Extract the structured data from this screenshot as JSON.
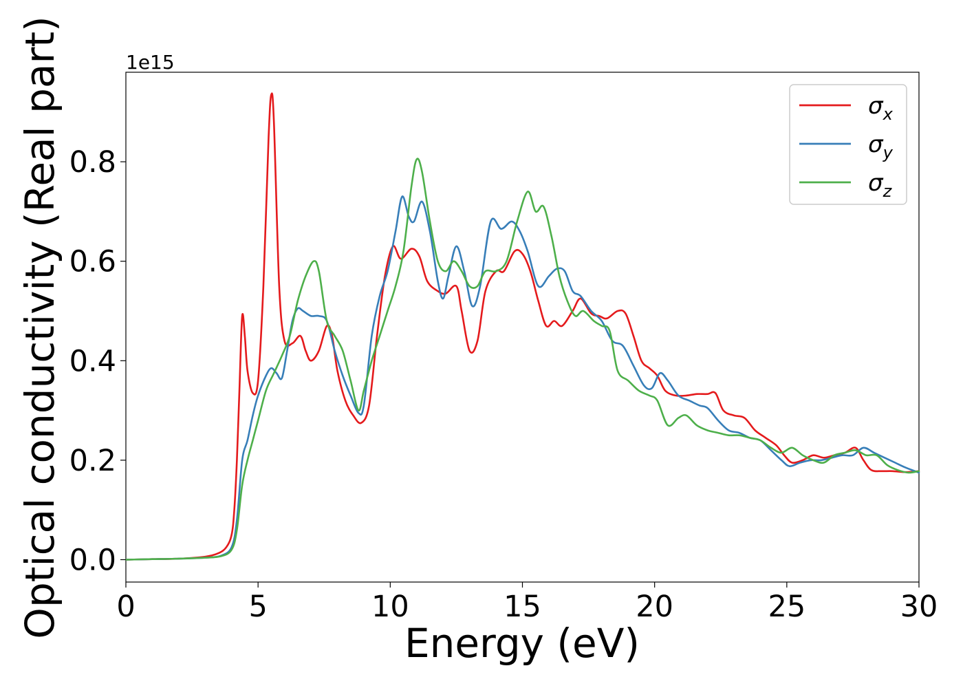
{
  "chart_data": {
    "type": "line",
    "xlabel": "Energy (eV)",
    "ylabel": "Optical conductivity (Real part)",
    "y_offset_label": "1e15",
    "xlim": [
      0,
      30
    ],
    "ylim": [
      -0.045,
      0.98
    ],
    "x_ticks": [
      0,
      5,
      10,
      15,
      20,
      25,
      30
    ],
    "x_tick_labels": [
      "0",
      "5",
      "10",
      "15",
      "20",
      "25",
      "30"
    ],
    "y_ticks": [
      0.0,
      0.2,
      0.4,
      0.6,
      0.8
    ],
    "y_tick_labels": [
      "0.0",
      "0.2",
      "0.4",
      "0.6",
      "0.8"
    ],
    "grid": false,
    "legend_position": "top-right",
    "series": [
      {
        "name": "σx",
        "symbol": "σ",
        "subscript": "x",
        "color": "#e41a1c",
        "points": [
          [
            0,
            0
          ],
          [
            1,
            0.001
          ],
          [
            2,
            0.002
          ],
          [
            3,
            0.006
          ],
          [
            3.5,
            0.013
          ],
          [
            3.8,
            0.025
          ],
          [
            4.0,
            0.05
          ],
          [
            4.1,
            0.1
          ],
          [
            4.2,
            0.2
          ],
          [
            4.3,
            0.35
          ],
          [
            4.4,
            0.49
          ],
          [
            4.5,
            0.45
          ],
          [
            4.6,
            0.38
          ],
          [
            4.8,
            0.335
          ],
          [
            5.0,
            0.36
          ],
          [
            5.2,
            0.55
          ],
          [
            5.4,
            0.85
          ],
          [
            5.5,
            0.935
          ],
          [
            5.6,
            0.88
          ],
          [
            5.8,
            0.55
          ],
          [
            6.0,
            0.44
          ],
          [
            6.3,
            0.435
          ],
          [
            6.6,
            0.45
          ],
          [
            6.8,
            0.42
          ],
          [
            7.0,
            0.4
          ],
          [
            7.3,
            0.42
          ],
          [
            7.6,
            0.47
          ],
          [
            7.8,
            0.45
          ],
          [
            8.0,
            0.38
          ],
          [
            8.3,
            0.32
          ],
          [
            8.6,
            0.29
          ],
          [
            8.9,
            0.275
          ],
          [
            9.2,
            0.31
          ],
          [
            9.5,
            0.45
          ],
          [
            9.8,
            0.57
          ],
          [
            10.1,
            0.63
          ],
          [
            10.4,
            0.605
          ],
          [
            10.8,
            0.625
          ],
          [
            11.1,
            0.61
          ],
          [
            11.4,
            0.56
          ],
          [
            11.8,
            0.54
          ],
          [
            12.1,
            0.535
          ],
          [
            12.5,
            0.55
          ],
          [
            12.7,
            0.5
          ],
          [
            13.0,
            0.42
          ],
          [
            13.3,
            0.44
          ],
          [
            13.6,
            0.54
          ],
          [
            14.0,
            0.58
          ],
          [
            14.3,
            0.58
          ],
          [
            14.7,
            0.62
          ],
          [
            15.0,
            0.615
          ],
          [
            15.3,
            0.58
          ],
          [
            15.6,
            0.52
          ],
          [
            15.9,
            0.47
          ],
          [
            16.2,
            0.48
          ],
          [
            16.5,
            0.47
          ],
          [
            16.9,
            0.5
          ],
          [
            17.2,
            0.525
          ],
          [
            17.6,
            0.495
          ],
          [
            17.9,
            0.49
          ],
          [
            18.2,
            0.485
          ],
          [
            18.6,
            0.5
          ],
          [
            18.9,
            0.495
          ],
          [
            19.2,
            0.45
          ],
          [
            19.5,
            0.4
          ],
          [
            19.8,
            0.385
          ],
          [
            20.1,
            0.37
          ],
          [
            20.4,
            0.34
          ],
          [
            20.8,
            0.33
          ],
          [
            21.2,
            0.33
          ],
          [
            21.6,
            0.333
          ],
          [
            22.0,
            0.333
          ],
          [
            22.3,
            0.335
          ],
          [
            22.6,
            0.3
          ],
          [
            23.0,
            0.29
          ],
          [
            23.4,
            0.285
          ],
          [
            23.8,
            0.26
          ],
          [
            24.2,
            0.245
          ],
          [
            24.6,
            0.23
          ],
          [
            24.9,
            0.21
          ],
          [
            25.2,
            0.195
          ],
          [
            25.6,
            0.2
          ],
          [
            26.0,
            0.21
          ],
          [
            26.4,
            0.205
          ],
          [
            26.8,
            0.21
          ],
          [
            27.2,
            0.215
          ],
          [
            27.6,
            0.225
          ],
          [
            27.9,
            0.2
          ],
          [
            28.2,
            0.18
          ],
          [
            28.6,
            0.178
          ],
          [
            29.0,
            0.178
          ],
          [
            29.5,
            0.176
          ],
          [
            30.0,
            0.178
          ]
        ]
      },
      {
        "name": "σy",
        "symbol": "σ",
        "subscript": "y",
        "color": "#377eb8",
        "points": [
          [
            0,
            0
          ],
          [
            1,
            0.001
          ],
          [
            2,
            0.002
          ],
          [
            3,
            0.004
          ],
          [
            3.6,
            0.008
          ],
          [
            4.0,
            0.025
          ],
          [
            4.2,
            0.08
          ],
          [
            4.4,
            0.2
          ],
          [
            4.6,
            0.24
          ],
          [
            4.8,
            0.29
          ],
          [
            5.0,
            0.33
          ],
          [
            5.3,
            0.37
          ],
          [
            5.5,
            0.385
          ],
          [
            5.7,
            0.375
          ],
          [
            5.9,
            0.365
          ],
          [
            6.1,
            0.42
          ],
          [
            6.3,
            0.48
          ],
          [
            6.5,
            0.505
          ],
          [
            6.7,
            0.5
          ],
          [
            7.0,
            0.49
          ],
          [
            7.3,
            0.49
          ],
          [
            7.6,
            0.48
          ],
          [
            7.9,
            0.42
          ],
          [
            8.2,
            0.37
          ],
          [
            8.5,
            0.33
          ],
          [
            8.8,
            0.295
          ],
          [
            9.0,
            0.31
          ],
          [
            9.3,
            0.45
          ],
          [
            9.6,
            0.53
          ],
          [
            9.9,
            0.58
          ],
          [
            10.2,
            0.66
          ],
          [
            10.45,
            0.73
          ],
          [
            10.7,
            0.69
          ],
          [
            10.9,
            0.68
          ],
          [
            11.2,
            0.72
          ],
          [
            11.5,
            0.66
          ],
          [
            11.8,
            0.56
          ],
          [
            12.0,
            0.525
          ],
          [
            12.2,
            0.57
          ],
          [
            12.5,
            0.63
          ],
          [
            12.8,
            0.58
          ],
          [
            13.1,
            0.51
          ],
          [
            13.4,
            0.55
          ],
          [
            13.8,
            0.68
          ],
          [
            14.2,
            0.665
          ],
          [
            14.6,
            0.68
          ],
          [
            14.9,
            0.66
          ],
          [
            15.2,
            0.62
          ],
          [
            15.6,
            0.55
          ],
          [
            16.0,
            0.57
          ],
          [
            16.3,
            0.585
          ],
          [
            16.6,
            0.58
          ],
          [
            16.9,
            0.54
          ],
          [
            17.2,
            0.53
          ],
          [
            17.6,
            0.5
          ],
          [
            18.0,
            0.48
          ],
          [
            18.4,
            0.44
          ],
          [
            18.8,
            0.43
          ],
          [
            19.2,
            0.39
          ],
          [
            19.6,
            0.35
          ],
          [
            19.9,
            0.345
          ],
          [
            20.2,
            0.375
          ],
          [
            20.5,
            0.36
          ],
          [
            20.9,
            0.33
          ],
          [
            21.3,
            0.32
          ],
          [
            21.7,
            0.31
          ],
          [
            22.0,
            0.305
          ],
          [
            22.4,
            0.28
          ],
          [
            22.8,
            0.26
          ],
          [
            23.2,
            0.255
          ],
          [
            23.6,
            0.245
          ],
          [
            24.0,
            0.24
          ],
          [
            24.4,
            0.22
          ],
          [
            24.8,
            0.2
          ],
          [
            25.1,
            0.188
          ],
          [
            25.5,
            0.195
          ],
          [
            25.9,
            0.2
          ],
          [
            26.3,
            0.2
          ],
          [
            26.7,
            0.205
          ],
          [
            27.1,
            0.21
          ],
          [
            27.5,
            0.21
          ],
          [
            27.9,
            0.225
          ],
          [
            28.3,
            0.215
          ],
          [
            28.7,
            0.205
          ],
          [
            29.1,
            0.195
          ],
          [
            29.5,
            0.185
          ],
          [
            30.0,
            0.175
          ]
        ]
      },
      {
        "name": "σz",
        "symbol": "σ",
        "subscript": "z",
        "color": "#4daf4a",
        "points": [
          [
            0,
            0
          ],
          [
            1,
            0.001
          ],
          [
            2,
            0.002
          ],
          [
            3,
            0.004
          ],
          [
            3.6,
            0.007
          ],
          [
            4.0,
            0.02
          ],
          [
            4.2,
            0.06
          ],
          [
            4.4,
            0.15
          ],
          [
            4.6,
            0.2
          ],
          [
            4.8,
            0.24
          ],
          [
            5.0,
            0.28
          ],
          [
            5.3,
            0.34
          ],
          [
            5.6,
            0.375
          ],
          [
            5.9,
            0.41
          ],
          [
            6.2,
            0.45
          ],
          [
            6.5,
            0.52
          ],
          [
            6.8,
            0.57
          ],
          [
            7.1,
            0.6
          ],
          [
            7.3,
            0.58
          ],
          [
            7.6,
            0.48
          ],
          [
            7.9,
            0.45
          ],
          [
            8.2,
            0.42
          ],
          [
            8.5,
            0.36
          ],
          [
            8.8,
            0.3
          ],
          [
            9.0,
            0.34
          ],
          [
            9.3,
            0.4
          ],
          [
            9.6,
            0.45
          ],
          [
            9.9,
            0.5
          ],
          [
            10.2,
            0.55
          ],
          [
            10.5,
            0.62
          ],
          [
            10.8,
            0.75
          ],
          [
            11.0,
            0.805
          ],
          [
            11.2,
            0.78
          ],
          [
            11.5,
            0.68
          ],
          [
            11.8,
            0.6
          ],
          [
            12.1,
            0.58
          ],
          [
            12.4,
            0.6
          ],
          [
            12.7,
            0.58
          ],
          [
            13.0,
            0.55
          ],
          [
            13.3,
            0.55
          ],
          [
            13.6,
            0.58
          ],
          [
            14.0,
            0.58
          ],
          [
            14.4,
            0.6
          ],
          [
            14.8,
            0.68
          ],
          [
            15.2,
            0.74
          ],
          [
            15.5,
            0.7
          ],
          [
            15.8,
            0.71
          ],
          [
            16.1,
            0.65
          ],
          [
            16.4,
            0.57
          ],
          [
            16.7,
            0.52
          ],
          [
            17.0,
            0.49
          ],
          [
            17.3,
            0.5
          ],
          [
            17.7,
            0.48
          ],
          [
            18.0,
            0.47
          ],
          [
            18.3,
            0.46
          ],
          [
            18.6,
            0.38
          ],
          [
            19.0,
            0.36
          ],
          [
            19.4,
            0.34
          ],
          [
            19.8,
            0.33
          ],
          [
            20.1,
            0.32
          ],
          [
            20.5,
            0.27
          ],
          [
            20.9,
            0.285
          ],
          [
            21.2,
            0.29
          ],
          [
            21.6,
            0.27
          ],
          [
            22.0,
            0.26
          ],
          [
            22.4,
            0.255
          ],
          [
            22.8,
            0.25
          ],
          [
            23.2,
            0.25
          ],
          [
            23.6,
            0.245
          ],
          [
            24.0,
            0.24
          ],
          [
            24.4,
            0.225
          ],
          [
            24.8,
            0.215
          ],
          [
            25.2,
            0.225
          ],
          [
            25.6,
            0.21
          ],
          [
            26.0,
            0.2
          ],
          [
            26.4,
            0.195
          ],
          [
            26.8,
            0.21
          ],
          [
            27.2,
            0.215
          ],
          [
            27.6,
            0.22
          ],
          [
            28.0,
            0.21
          ],
          [
            28.4,
            0.21
          ],
          [
            28.8,
            0.19
          ],
          [
            29.2,
            0.18
          ],
          [
            29.6,
            0.175
          ],
          [
            30.0,
            0.178
          ]
        ]
      }
    ]
  }
}
